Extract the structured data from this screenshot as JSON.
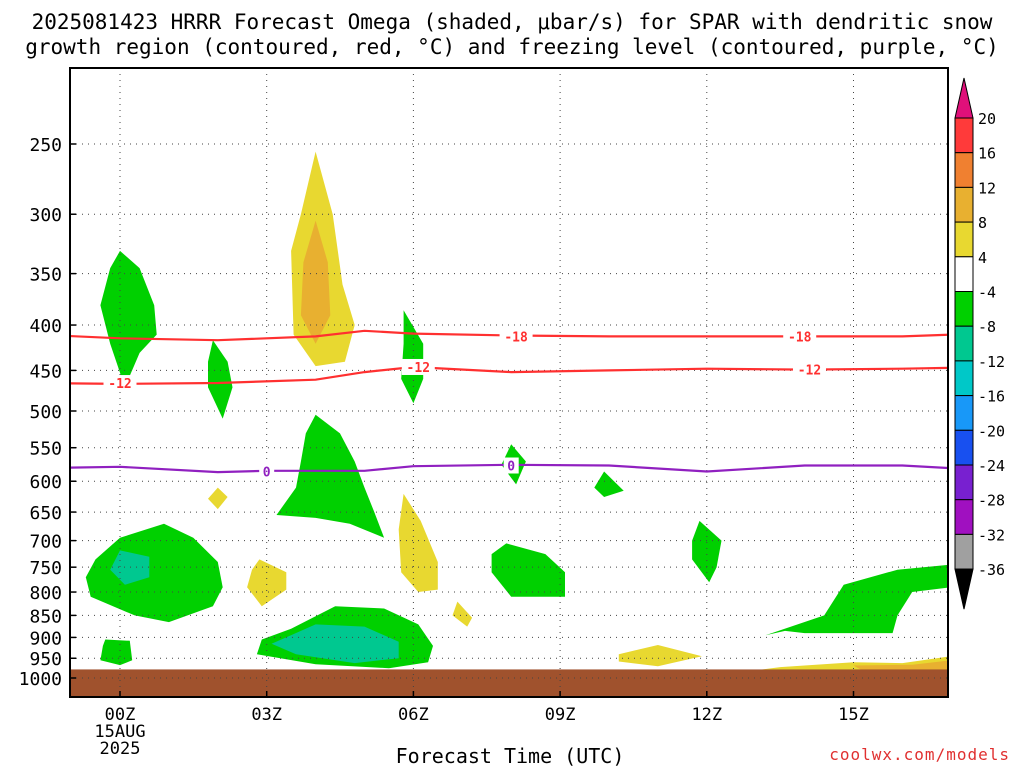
{
  "title_line1": "2025081423 HRRR Forecast Omega (shaded, μbar/s) for SPAR with dendritic snow",
  "title_line2": "growth region (contoured, red, °C) and freezing level (contoured, purple, °C)",
  "credit": "coolwx.com/models",
  "chart_data": {
    "type": "heatmap",
    "xlabel": "Forecast Time (UTC)",
    "ylabel": "",
    "xlim": [
      -1.7,
      17
    ],
    "ylim": [
      1040,
      190
    ],
    "y_scale": "log-pressure",
    "grid": true,
    "x_ticks": [
      {
        "value": 0,
        "label": "00Z",
        "sub1": "15AUG",
        "sub2": "2025"
      },
      {
        "value": 3,
        "label": "03Z"
      },
      {
        "value": 6,
        "label": "06Z"
      },
      {
        "value": 9,
        "label": "09Z"
      },
      {
        "value": 12,
        "label": "12Z"
      },
      {
        "value": 15,
        "label": "15Z"
      }
    ],
    "y_ticks": [
      250,
      300,
      350,
      400,
      450,
      500,
      550,
      600,
      650,
      700,
      750,
      800,
      850,
      900,
      950,
      1000
    ],
    "colorbar": {
      "levels": [
        "20",
        "16",
        "12",
        "8",
        "4",
        "-4",
        "-8",
        "-12",
        "-16",
        "-20",
        "-24",
        "-28",
        "-32",
        "-36"
      ],
      "colors": [
        "#ff3a3a",
        "#f08030",
        "#e8b030",
        "#e8d830",
        "#ffffff",
        "#00d000",
        "#00c890",
        "#00c8c8",
        "#1898f8",
        "#1850f0",
        "#7820d0",
        "#a010c0",
        "#a0a0a0"
      ],
      "top_color": "#e0107a",
      "bottom_color": "#000000"
    },
    "contours": [
      {
        "name": "-18",
        "color": "#ff3030",
        "points": [
          [
            -1.7,
            410
          ],
          [
            0,
            414
          ],
          [
            2,
            416
          ],
          [
            4,
            412
          ],
          [
            5,
            406
          ],
          [
            6,
            409
          ],
          [
            8,
            411
          ],
          [
            10,
            412
          ],
          [
            12,
            412
          ],
          [
            14,
            412
          ],
          [
            16,
            412
          ],
          [
            17,
            410
          ]
        ],
        "labels": [
          [
            8.1,
            412
          ],
          [
            13.9,
            412
          ]
        ]
      },
      {
        "name": "-12",
        "color": "#ff3030",
        "points": [
          [
            -1.7,
            465
          ],
          [
            0,
            466
          ],
          [
            2,
            465
          ],
          [
            4,
            461
          ],
          [
            5,
            452
          ],
          [
            6,
            446
          ],
          [
            8,
            452
          ],
          [
            10,
            450
          ],
          [
            12,
            448
          ],
          [
            14,
            449
          ],
          [
            16,
            448
          ],
          [
            17,
            447
          ]
        ],
        "labels": [
          [
            0,
            465
          ],
          [
            6.1,
            446
          ],
          [
            14.1,
            449
          ]
        ]
      },
      {
        "name": "0",
        "color": "#9020c0",
        "points": [
          [
            -1.7,
            580
          ],
          [
            0,
            578
          ],
          [
            2,
            586
          ],
          [
            3,
            584
          ],
          [
            5,
            584
          ],
          [
            6,
            577
          ],
          [
            8,
            575
          ],
          [
            10,
            576
          ],
          [
            12,
            585
          ],
          [
            14,
            576
          ],
          [
            16,
            576
          ],
          [
            17,
            580
          ]
        ],
        "labels": [
          [
            3,
            585
          ],
          [
            8,
            576
          ]
        ]
      }
    ],
    "regions": [
      {
        "color": "#00d000",
        "points": [
          [
            0,
            330
          ],
          [
            0.4,
            345
          ],
          [
            0.7,
            380
          ],
          [
            0.75,
            410
          ],
          [
            0.4,
            430
          ],
          [
            0.1,
            470
          ],
          [
            -0.2,
            420
          ],
          [
            -0.4,
            380
          ],
          [
            -0.2,
            345
          ]
        ]
      },
      {
        "color": "#00d000",
        "points": [
          [
            1.9,
            416
          ],
          [
            2.2,
            440
          ],
          [
            2.3,
            470
          ],
          [
            2.1,
            510
          ],
          [
            1.8,
            470
          ],
          [
            1.8,
            440
          ]
        ]
      },
      {
        "color": "#00d000",
        "points": [
          [
            5.8,
            385
          ],
          [
            6.2,
            420
          ],
          [
            6.2,
            460
          ],
          [
            6.0,
            490
          ],
          [
            5.75,
            460
          ],
          [
            5.8,
            420
          ]
        ]
      },
      {
        "color": "#00d000",
        "points": [
          [
            4.0,
            505
          ],
          [
            4.5,
            530
          ],
          [
            4.8,
            570
          ],
          [
            5.0,
            610
          ],
          [
            5.2,
            650
          ],
          [
            5.4,
            695
          ],
          [
            4.7,
            670
          ],
          [
            4.0,
            660
          ],
          [
            3.2,
            655
          ],
          [
            3.6,
            610
          ],
          [
            3.7,
            570
          ],
          [
            3.8,
            530
          ]
        ]
      },
      {
        "color": "#00d000",
        "points": [
          [
            8.0,
            545
          ],
          [
            8.3,
            570
          ],
          [
            8.1,
            605
          ],
          [
            7.8,
            575
          ]
        ]
      },
      {
        "color": "#00d000",
        "points": [
          [
            9.9,
            585
          ],
          [
            10.3,
            615
          ],
          [
            9.9,
            625
          ],
          [
            9.7,
            610
          ]
        ]
      },
      {
        "color": "#00d000",
        "points": [
          [
            11.85,
            665
          ],
          [
            12.3,
            700
          ],
          [
            12.2,
            750
          ],
          [
            12.05,
            780
          ],
          [
            11.7,
            735
          ],
          [
            11.7,
            700
          ]
        ]
      },
      {
        "color": "#00d000",
        "points": [
          [
            7.9,
            705
          ],
          [
            8.7,
            725
          ],
          [
            9.1,
            760
          ],
          [
            9.1,
            810
          ],
          [
            8.0,
            810
          ],
          [
            7.6,
            760
          ],
          [
            7.6,
            725
          ]
        ]
      },
      {
        "color": "#00d000",
        "points": [
          [
            0,
            695
          ],
          [
            0.9,
            670
          ],
          [
            1.5,
            695
          ],
          [
            2.0,
            740
          ],
          [
            2.1,
            790
          ],
          [
            1.9,
            830
          ],
          [
            1.0,
            865
          ],
          [
            0.3,
            850
          ],
          [
            -0.6,
            810
          ],
          [
            -0.7,
            770
          ],
          [
            -0.5,
            735
          ]
        ]
      },
      {
        "color": "#00d000",
        "points": [
          [
            4.4,
            830
          ],
          [
            5.4,
            835
          ],
          [
            6.1,
            870
          ],
          [
            6.4,
            920
          ],
          [
            6.3,
            960
          ],
          [
            5.5,
            975
          ],
          [
            4.0,
            965
          ],
          [
            2.8,
            940
          ],
          [
            2.9,
            905
          ],
          [
            3.5,
            880
          ]
        ]
      },
      {
        "color": "#00d000",
        "points": [
          [
            -0.3,
            905
          ],
          [
            0.2,
            908
          ],
          [
            0.25,
            955
          ],
          [
            0.0,
            967
          ],
          [
            -0.4,
            955
          ],
          [
            -0.35,
            920
          ]
        ]
      },
      {
        "color": "#00d000",
        "points": [
          [
            14.8,
            785
          ],
          [
            15.9,
            755
          ],
          [
            17.0,
            745
          ],
          [
            17.0,
            790
          ],
          [
            16.2,
            800
          ],
          [
            15.9,
            850
          ],
          [
            15.8,
            890
          ],
          [
            14.0,
            890
          ],
          [
            13.6,
            885
          ],
          [
            13.2,
            895
          ],
          [
            14.4,
            850
          ]
        ]
      },
      {
        "color": "#00c890",
        "points": [
          [
            0,
            718
          ],
          [
            0.6,
            730
          ],
          [
            0.6,
            770
          ],
          [
            0.1,
            785
          ],
          [
            -0.2,
            755
          ]
        ]
      },
      {
        "color": "#00c890",
        "points": [
          [
            4.0,
            870
          ],
          [
            5.0,
            875
          ],
          [
            5.7,
            910
          ],
          [
            5.7,
            950
          ],
          [
            4.8,
            962
          ],
          [
            3.6,
            940
          ],
          [
            3.1,
            915
          ]
        ]
      },
      {
        "color": "#e8d830",
        "points": [
          [
            4.0,
            255
          ],
          [
            4.35,
            300
          ],
          [
            4.55,
            360
          ],
          [
            4.8,
            400
          ],
          [
            4.6,
            440
          ],
          [
            4.0,
            445
          ],
          [
            3.55,
            410
          ],
          [
            3.5,
            330
          ],
          [
            3.7,
            300
          ]
        ]
      },
      {
        "color": "#e8b030",
        "points": [
          [
            4.0,
            305
          ],
          [
            4.25,
            340
          ],
          [
            4.3,
            390
          ],
          [
            4.0,
            420
          ],
          [
            3.7,
            390
          ],
          [
            3.75,
            340
          ]
        ]
      },
      {
        "color": "#e8d830",
        "points": [
          [
            2.0,
            610
          ],
          [
            2.2,
            625
          ],
          [
            2.0,
            645
          ],
          [
            1.8,
            628
          ]
        ]
      },
      {
        "color": "#e8d830",
        "points": [
          [
            5.8,
            620
          ],
          [
            6.15,
            665
          ],
          [
            6.5,
            740
          ],
          [
            6.5,
            795
          ],
          [
            6.1,
            800
          ],
          [
            5.75,
            760
          ],
          [
            5.7,
            680
          ]
        ]
      },
      {
        "color": "#e8d830",
        "points": [
          [
            2.85,
            735
          ],
          [
            3.4,
            760
          ],
          [
            3.4,
            795
          ],
          [
            2.9,
            830
          ],
          [
            2.6,
            790
          ],
          [
            2.7,
            755
          ]
        ]
      },
      {
        "color": "#e8d830",
        "points": [
          [
            6.9,
            820
          ],
          [
            7.2,
            855
          ],
          [
            7.1,
            875
          ],
          [
            6.8,
            850
          ]
        ]
      },
      {
        "color": "#e8d830",
        "points": [
          [
            10.2,
            940
          ],
          [
            11.0,
            918
          ],
          [
            11.9,
            945
          ],
          [
            11.0,
            970
          ],
          [
            10.2,
            958
          ]
        ]
      },
      {
        "color": "#e8d830",
        "points": [
          [
            12.4,
            990
          ],
          [
            13.5,
            972
          ],
          [
            15.0,
            960
          ],
          [
            16.0,
            962
          ],
          [
            17.0,
            945
          ],
          [
            17.0,
            1020
          ],
          [
            12.4,
            1020
          ]
        ]
      },
      {
        "color": "#e8b030",
        "points": [
          [
            15.0,
            968
          ],
          [
            16.2,
            966
          ],
          [
            17.0,
            955
          ],
          [
            17.0,
            985
          ],
          [
            15.2,
            982
          ]
        ]
      }
    ],
    "terrain": {
      "color": "#a0522d",
      "top_pressure": 978
    }
  }
}
